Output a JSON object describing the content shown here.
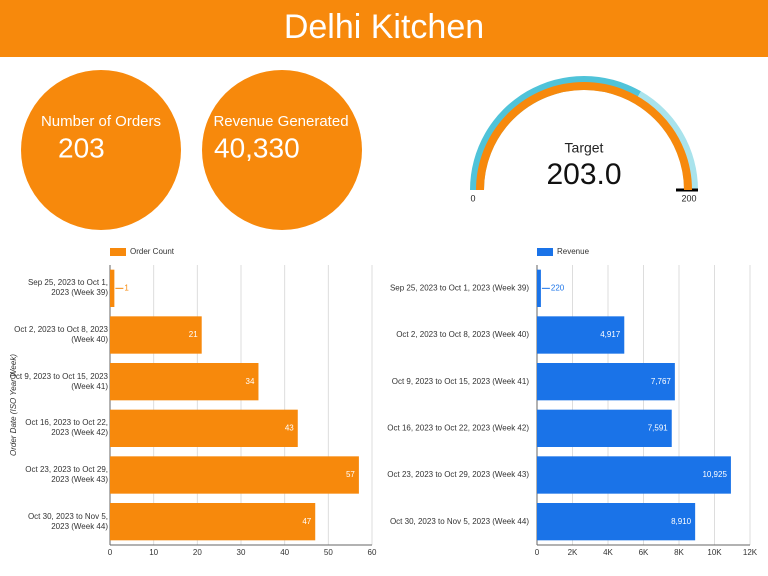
{
  "title": "Delhi Kitchen",
  "scorecards": [
    {
      "label": "Number of Orders",
      "value": "203"
    },
    {
      "label": "Revenue Generated",
      "value": "40,330"
    }
  ],
  "gauge": {
    "label": "Target",
    "value": 203,
    "value_label": "203.0",
    "range": [
      0,
      200
    ],
    "color": "#f7890c"
  },
  "chart_data": [
    {
      "type": "bar",
      "orientation": "horizontal",
      "legend": "top",
      "grid": true,
      "y_axis_title": "Order Date (ISO Year Week)",
      "categories": [
        "Sep 25, 2023 to Oct 1, 2023 (Week 39)",
        "Oct 2, 2023 to Oct 8, 2023 (Week 40)",
        "Oct 9, 2023 to Oct 15, 2023 (Week 41)",
        "Oct 16, 2023 to Oct 22, 2023 (Week 42)",
        "Oct 23, 2023 to Oct 29, 2023 (Week 43)",
        "Oct 30, 2023 to Nov 5, 2023 (Week 44)"
      ],
      "series": [
        {
          "name": "Order Count",
          "color": "#f7890c",
          "values": [
            1,
            21,
            34,
            43,
            57,
            47
          ]
        }
      ],
      "xlim": [
        0,
        60
      ],
      "xticks": [
        0,
        10,
        20,
        30,
        40,
        50,
        60
      ]
    },
    {
      "type": "bar",
      "orientation": "horizontal",
      "legend": "top",
      "grid": true,
      "categories": [
        "Sep 25, 2023 to Oct 1, 2023 (Week 39)",
        "Oct 2, 2023 to Oct 8, 2023 (Week 40)",
        "Oct 9, 2023 to Oct 15, 2023 (Week 41)",
        "Oct 16, 2023 to Oct 22, 2023 (Week 42)",
        "Oct 23, 2023 to Oct 29, 2023 (Week 43)",
        "Oct 30, 2023 to Nov 5, 2023 (Week 44)"
      ],
      "series": [
        {
          "name": "Revenue",
          "color": "#1a73e8",
          "values": [
            220,
            4917,
            7767,
            7591,
            10925,
            8910
          ],
          "value_labels": [
            "220",
            "4,917",
            "7,767",
            "7,591",
            "10,925",
            "8,910"
          ]
        }
      ],
      "xlim": [
        0,
        12000
      ],
      "xticks": [
        0,
        {
          "value": 2000,
          "label": "2K"
        },
        {
          "value": 4000,
          "label": "4K"
        },
        {
          "value": 6000,
          "label": "6K"
        },
        {
          "value": 8000,
          "label": "8K"
        },
        {
          "value": 10000,
          "label": "10K"
        },
        {
          "value": 12000,
          "label": "12K"
        }
      ]
    }
  ]
}
